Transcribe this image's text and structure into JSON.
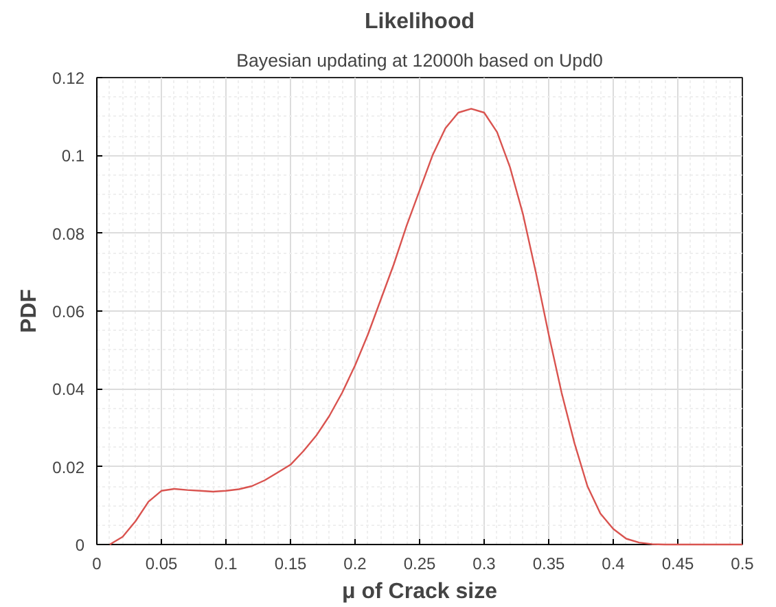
{
  "chart_data": {
    "type": "line",
    "title": "Likelihood",
    "subtitle": "Bayesian updating at 12000h based on Upd0",
    "xlabel": "μ of Crack size",
    "ylabel": "PDF",
    "x": [
      0.01,
      0.02,
      0.03,
      0.04,
      0.05,
      0.06,
      0.07,
      0.08,
      0.09,
      0.1,
      0.11,
      0.12,
      0.13,
      0.14,
      0.15,
      0.16,
      0.17,
      0.18,
      0.19,
      0.2,
      0.21,
      0.22,
      0.23,
      0.24,
      0.25,
      0.26,
      0.27,
      0.28,
      0.29,
      0.3,
      0.31,
      0.32,
      0.33,
      0.34,
      0.35,
      0.36,
      0.37,
      0.38,
      0.39,
      0.4,
      0.41,
      0.42,
      0.43,
      0.44,
      0.45,
      0.5
    ],
    "series": [
      {
        "color": "#d9534f",
        "values": [
          0,
          0.002,
          0.006,
          0.011,
          0.0138,
          0.0143,
          0.014,
          0.0138,
          0.0136,
          0.0138,
          0.0142,
          0.015,
          0.0165,
          0.0185,
          0.0205,
          0.024,
          0.028,
          0.033,
          0.039,
          0.046,
          0.054,
          0.063,
          0.072,
          0.082,
          0.091,
          0.1,
          0.107,
          0.111,
          0.112,
          0.111,
          0.106,
          0.097,
          0.085,
          0.07,
          0.054,
          0.039,
          0.026,
          0.015,
          0.008,
          0.004,
          0.0015,
          0.0005,
          0.0001,
          0,
          0,
          0
        ]
      }
    ],
    "xlim": [
      0,
      0.5
    ],
    "ylim": [
      0,
      0.12
    ],
    "xticks": [
      0,
      0.05,
      0.1,
      0.15,
      0.2,
      0.25,
      0.3,
      0.35,
      0.4,
      0.45,
      0.5
    ],
    "yticks": [
      0,
      0.02,
      0.04,
      0.06,
      0.08,
      0.1,
      0.12
    ],
    "grid": true,
    "marker": "none",
    "line_style": "solid"
  }
}
